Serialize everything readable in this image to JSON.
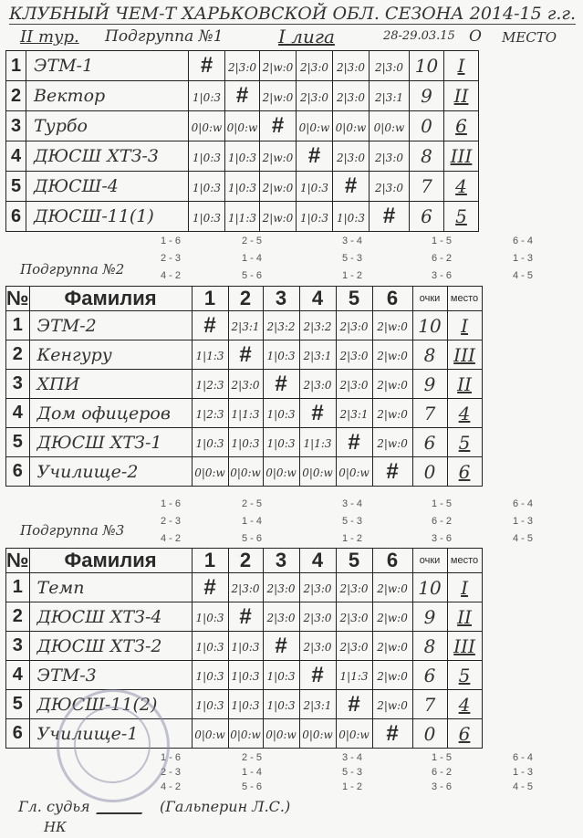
{
  "title": "КЛУБНЫЙ ЧЕМ-Т ХАРЬКОВСКОЙ ОБЛ. СЕЗОНА 2014-15 г.г.",
  "round": "II тур.",
  "date": "28-29.03.15",
  "league": "I лига",
  "o_label": "О",
  "place_label": "МЕСТО",
  "groups": [
    {
      "label": "Подгруппа №1",
      "header": null,
      "rows": [
        {
          "num": "1",
          "name": "ЭТМ-1",
          "cells": [
            "#",
            "2|3:0",
            "2|w:0",
            "2|3:0",
            "2|3:0",
            "2|3:0"
          ],
          "points": "10",
          "place": "I"
        },
        {
          "num": "2",
          "name": "Вектор",
          "cells": [
            "1|0:3",
            "#",
            "2|w:0",
            "2|3:0",
            "2|3:0",
            "2|3:1"
          ],
          "points": "9",
          "place": "II"
        },
        {
          "num": "3",
          "name": "Турбо",
          "cells": [
            "0|0:w",
            "0|0:w",
            "#",
            "0|0:w",
            "0|0:w",
            "0|0:w"
          ],
          "points": "0",
          "place": "6"
        },
        {
          "num": "4",
          "name": "ДЮСШ ХТЗ-3",
          "cells": [
            "1|0:3",
            "1|0:3",
            "2|w:0",
            "#",
            "2|3:0",
            "2|3:0"
          ],
          "points": "8",
          "place": "III"
        },
        {
          "num": "5",
          "name": "ДЮСШ-4",
          "cells": [
            "1|0:3",
            "1|0:3",
            "2|w:0",
            "1|0:3",
            "#",
            "2|3:0"
          ],
          "points": "7",
          "place": "4"
        },
        {
          "num": "6",
          "name": "ДЮСШ-11(1)",
          "cells": [
            "1|0:3",
            "1|1:3",
            "2|w:0",
            "1|0:3",
            "1|0:3",
            "#"
          ],
          "points": "6",
          "place": "5"
        }
      ],
      "schedule": [
        [
          "1 - 6",
          "2 - 5",
          "3 - 4",
          "1 - 5",
          "6 - 4"
        ],
        [
          "2 - 3",
          "1 - 4",
          "5 - 3",
          "6 - 2",
          "1 - 3"
        ],
        [
          "4 - 2",
          "5 - 6",
          "1 - 2",
          "3 - 6",
          "4 - 5"
        ]
      ]
    },
    {
      "label": "Подгруппа №2",
      "header": {
        "no": "№",
        "name": "Фамилия",
        "cols": [
          "1",
          "2",
          "3",
          "4",
          "5",
          "6"
        ],
        "points": "очки",
        "place": "место"
      },
      "rows": [
        {
          "num": "1",
          "name": "ЭТМ-2",
          "cells": [
            "#",
            "2|3:1",
            "2|3:2",
            "2|3:2",
            "2|3:0",
            "2|w:0"
          ],
          "points": "10",
          "place": "I"
        },
        {
          "num": "2",
          "name": "Кенгуру",
          "cells": [
            "1|1:3",
            "#",
            "1|0:3",
            "2|3:1",
            "2|3:0",
            "2|w:0"
          ],
          "points": "8",
          "place": "III"
        },
        {
          "num": "3",
          "name": "ХПИ",
          "cells": [
            "1|2:3",
            "2|3:0",
            "#",
            "2|3:0",
            "2|3:0",
            "2|w:0"
          ],
          "points": "9",
          "place": "II"
        },
        {
          "num": "4",
          "name": "Дом офицеров",
          "cells": [
            "1|2:3",
            "1|1:3",
            "1|0:3",
            "#",
            "2|3:1",
            "2|w:0"
          ],
          "points": "7",
          "place": "4"
        },
        {
          "num": "5",
          "name": "ДЮСШ ХТЗ-1",
          "cells": [
            "1|0:3",
            "1|0:3",
            "1|0:3",
            "1|1:3",
            "#",
            "2|w:0"
          ],
          "points": "6",
          "place": "5"
        },
        {
          "num": "6",
          "name": "Училище-2",
          "cells": [
            "0|0:w",
            "0|0:w",
            "0|0:w",
            "0|0:w",
            "0|0:w",
            "#"
          ],
          "points": "0",
          "place": "6"
        }
      ],
      "schedule": [
        [
          "1 - 6",
          "2 - 5",
          "3 - 4",
          "1 - 5",
          "6 - 4"
        ],
        [
          "2 - 3",
          "1 - 4",
          "5 - 3",
          "6 - 2",
          "1 - 3"
        ],
        [
          "4 - 2",
          "5 - 6",
          "1 - 2",
          "3 - 6",
          "4 - 5"
        ]
      ]
    },
    {
      "label": "Подгруппа №3",
      "header": {
        "no": "№",
        "name": "Фамилия",
        "cols": [
          "1",
          "2",
          "3",
          "4",
          "5",
          "6"
        ],
        "points": "очки",
        "place": "место"
      },
      "rows": [
        {
          "num": "1",
          "name": "Темп",
          "cells": [
            "#",
            "2|3:0",
            "2|3:0",
            "2|3:0",
            "2|3:0",
            "2|w:0"
          ],
          "points": "10",
          "place": "I"
        },
        {
          "num": "2",
          "name": "ДЮСШ ХТЗ-4",
          "cells": [
            "1|0:3",
            "#",
            "2|3:0",
            "2|3:0",
            "2|3:0",
            "2|w:0"
          ],
          "points": "9",
          "place": "II"
        },
        {
          "num": "3",
          "name": "ДЮСШ ХТЗ-2",
          "cells": [
            "1|0:3",
            "1|0:3",
            "#",
            "2|3:0",
            "2|3:0",
            "2|w:0"
          ],
          "points": "8",
          "place": "III"
        },
        {
          "num": "4",
          "name": "ЭТМ-3",
          "cells": [
            "1|0:3",
            "1|0:3",
            "1|0:3",
            "#",
            "1|1:3",
            "2|w:0"
          ],
          "points": "6",
          "place": "5"
        },
        {
          "num": "5",
          "name": "ДЮСШ-11(2)",
          "cells": [
            "1|0:3",
            "1|0:3",
            "1|0:3",
            "2|3:1",
            "#",
            "2|w:0"
          ],
          "points": "7",
          "place": "4"
        },
        {
          "num": "6",
          "name": "Училище-1",
          "cells": [
            "0|0:w",
            "0|0:w",
            "0|0:w",
            "0|0:w",
            "0|0:w",
            "#"
          ],
          "points": "0",
          "place": "6"
        }
      ],
      "schedule": [
        [
          "1 - 6",
          "2 - 5",
          "3 - 4",
          "1 - 5",
          "6 - 4"
        ],
        [
          "2 - 3",
          "1 - 4",
          "5 - 3",
          "6 - 2",
          "1 - 3"
        ],
        [
          "4 - 2",
          "5 - 6",
          "1 - 2",
          "3 - 6",
          "4 - 5"
        ]
      ]
    }
  ],
  "footer": {
    "judge": "Гл. судья",
    "judge_name": "(Гальперин Л.С.)",
    "category": "НК"
  },
  "stamp_text": "Україна Харківська обласна федерація настільного тенісу №25421006"
}
